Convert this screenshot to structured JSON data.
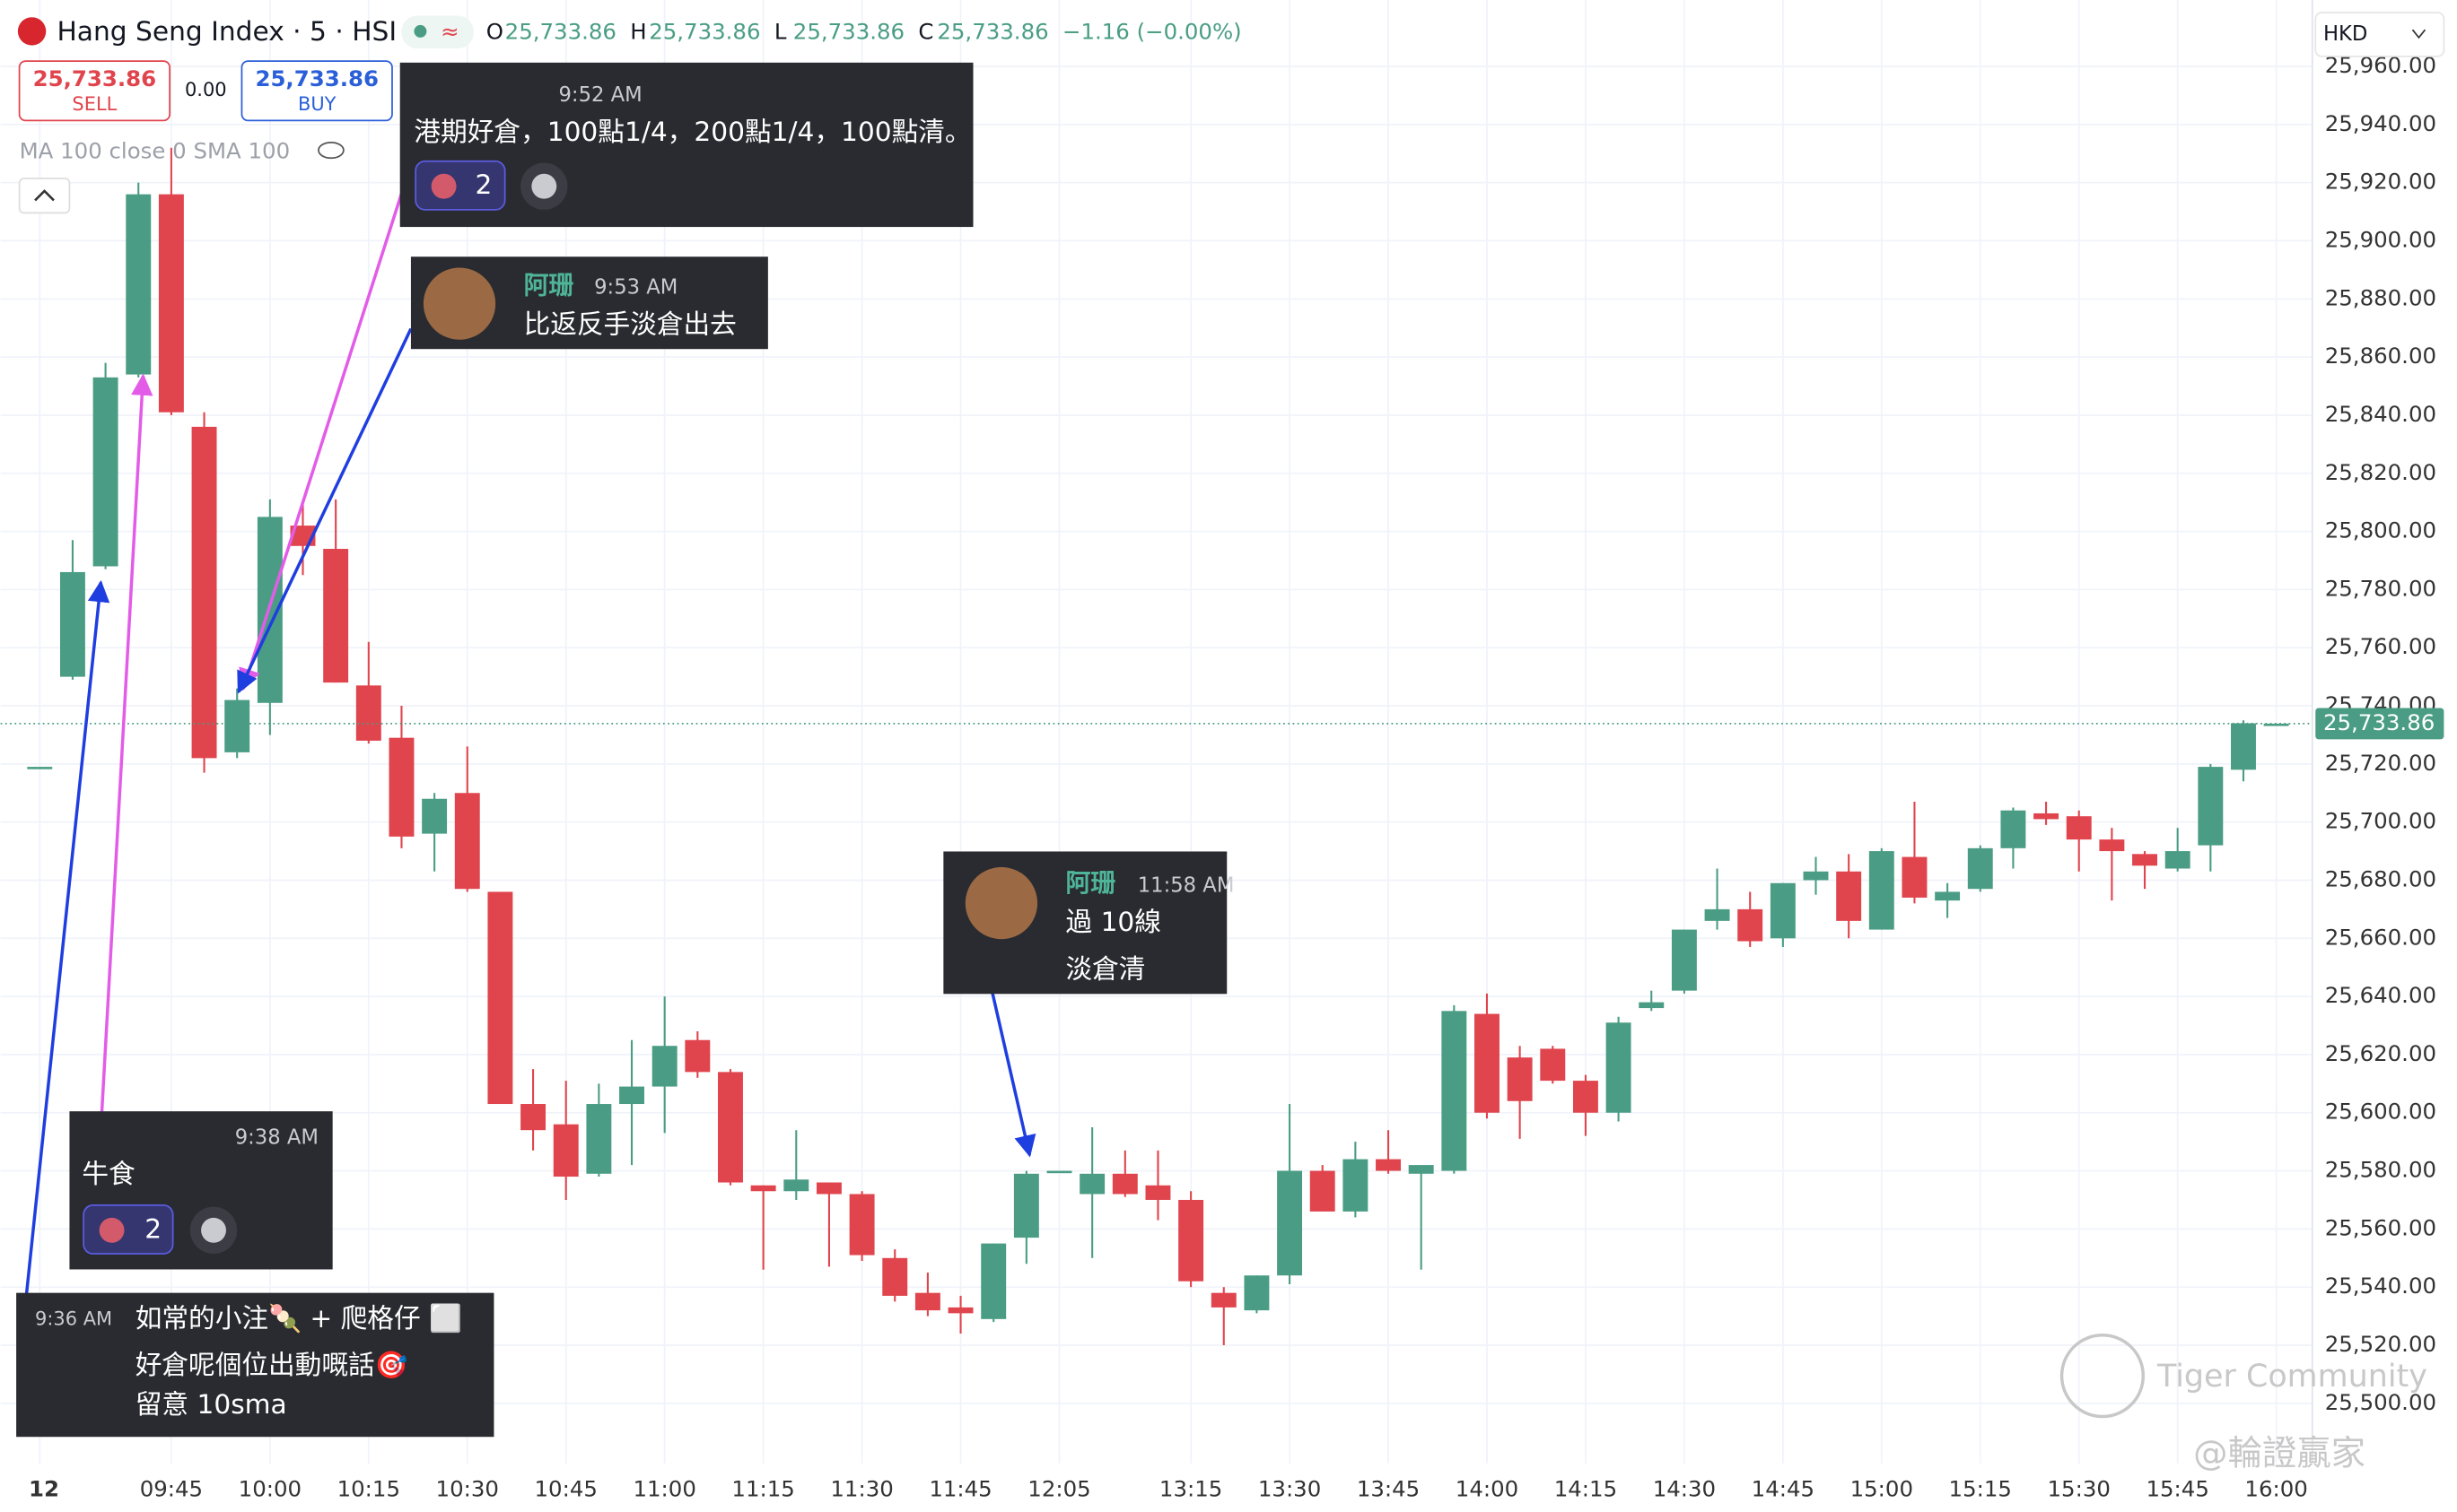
{
  "chart_data": {
    "type": "candlestick",
    "categories": [
      "12",
      null,
      null,
      null,
      "09:45",
      null,
      null,
      "10:00",
      null,
      null,
      "10:15",
      null,
      null,
      "10:30",
      null,
      null,
      "10:45",
      null,
      null,
      "11:00",
      null,
      null,
      "11:15",
      null,
      null,
      "11:30",
      null,
      null,
      "11:45",
      null,
      null,
      "12:05",
      null,
      null,
      null,
      "13:15",
      null,
      null,
      "13:30",
      null,
      null,
      "13:45",
      null,
      null,
      "14:00",
      null,
      null,
      "14:15",
      null,
      null,
      "14:30",
      null,
      null,
      "14:45",
      null,
      null,
      "15:00",
      null,
      null,
      "15:15",
      null,
      null,
      "15:30",
      null,
      null,
      "15:45",
      null,
      null,
      "16:00"
    ],
    "open": [
      25719,
      25750,
      25788,
      25854,
      25916,
      25836,
      25724,
      25741,
      25802,
      25794,
      25747,
      25729,
      25696,
      25710,
      25676,
      25603,
      25596,
      25579,
      25603,
      25609,
      25625,
      25614,
      25575,
      25573,
      25576,
      25572,
      25550,
      25538,
      25533,
      25529,
      25557,
      25580,
      25572,
      25579,
      25575,
      25570,
      25538,
      25532,
      25544,
      25580,
      25566,
      25584,
      25579,
      25580,
      25634,
      25619,
      25622,
      25611,
      25600,
      25636,
      25642,
      25666,
      25670,
      25660,
      25680,
      25683,
      25663,
      25688,
      25673,
      25677,
      25691,
      25703,
      25702,
      25694,
      25689,
      25684,
      25692,
      25718,
      25733.86
    ],
    "high": [
      25719,
      25797,
      25858,
      25920,
      25932,
      25841,
      25746,
      25811,
      25810,
      25811,
      25762,
      25740,
      25710,
      25726,
      25676,
      25615,
      25611,
      25610,
      25625,
      25640,
      25628,
      25615,
      25575,
      25594,
      25576,
      25573,
      25553,
      25545,
      25537,
      25555,
      25580,
      25580,
      25595,
      25587,
      25587,
      25573,
      25540,
      25544,
      25603,
      25582,
      25590,
      25594,
      25582,
      25637,
      25641,
      25623,
      25623,
      25613,
      25633,
      25642,
      25663,
      25684,
      25676,
      25679,
      25688,
      25689,
      25691,
      25707,
      25679,
      25692,
      25705,
      25707,
      25704,
      25698,
      25690,
      25698,
      25720,
      25735,
      25733.86
    ],
    "low": [
      25719,
      25749,
      25787,
      25853,
      25840,
      25717,
      25722,
      25730,
      25785,
      25748,
      25727,
      25691,
      25683,
      25676,
      25603,
      25587,
      25570,
      25578,
      25582,
      25593,
      25612,
      25575,
      25546,
      25570,
      25547,
      25549,
      25535,
      25530,
      25524,
      25528,
      25548,
      25580,
      25550,
      25571,
      25563,
      25540,
      25520,
      25531,
      25541,
      25566,
      25564,
      25579,
      25546,
      25579,
      25598,
      25591,
      25610,
      25592,
      25597,
      25635,
      25641,
      25663,
      25657,
      25657,
      25675,
      25660,
      25663,
      25672,
      25667,
      25676,
      25684,
      25699,
      25683,
      25673,
      25677,
      25683,
      25683,
      25714,
      25733.86
    ],
    "close": [
      25719,
      25786,
      25853,
      25916,
      25841,
      25722,
      25742,
      25805,
      25795,
      25748,
      25728,
      25695,
      25708,
      25677,
      25603,
      25594,
      25578,
      25603,
      25609,
      25623,
      25614,
      25576,
      25573,
      25577,
      25572,
      25551,
      25537,
      25532,
      25531,
      25555,
      25579,
      25580,
      25579,
      25572,
      25570,
      25542,
      25533,
      25544,
      25580,
      25566,
      25584,
      25580,
      25582,
      25635,
      25600,
      25604,
      25611,
      25600,
      25631,
      25638,
      25663,
      25670,
      25659,
      25679,
      25683,
      25666,
      25690,
      25674,
      25676,
      25691,
      25704,
      25701,
      25694,
      25690,
      25685,
      25690,
      25719,
      25734,
      25733.86
    ],
    "up_color": "#4a9d84",
    "down_color": "#e0444d",
    "ylim": [
      25482,
      25964
    ],
    "yticks": [
      {
        "value": 25500,
        "label": "25,500.00"
      },
      {
        "value": 25520,
        "label": "25,520.00"
      },
      {
        "value": 25540,
        "label": "25,540.00"
      },
      {
        "value": 25560,
        "label": "25,560.00"
      },
      {
        "value": 25580,
        "label": "25,580.00"
      },
      {
        "value": 25600,
        "label": "25,600.00"
      },
      {
        "value": 25620,
        "label": "25,620.00"
      },
      {
        "value": 25640,
        "label": "25,640.00"
      },
      {
        "value": 25660,
        "label": "25,660.00"
      },
      {
        "value": 25680,
        "label": "25,680.00"
      },
      {
        "value": 25700,
        "label": "25,700.00"
      },
      {
        "value": 25720,
        "label": "25,720.00"
      },
      {
        "value": 25740,
        "label": "25,740.00"
      },
      {
        "value": 25760,
        "label": "25,760.00"
      },
      {
        "value": 25780,
        "label": "25,780.00"
      },
      {
        "value": 25800,
        "label": "25,800.00"
      },
      {
        "value": 25820,
        "label": "25,820.00"
      },
      {
        "value": 25840,
        "label": "25,840.00"
      },
      {
        "value": 25860,
        "label": "25,860.00"
      },
      {
        "value": 25880,
        "label": "25,880.00"
      },
      {
        "value": 25900,
        "label": "25,900.00"
      },
      {
        "value": 25920,
        "label": "25,920.00"
      },
      {
        "value": 25940,
        "label": "25,940.00"
      },
      {
        "value": 25960,
        "label": "25,960.00"
      }
    ],
    "grid": true,
    "last_price": {
      "value": 25733.86,
      "label": "25,733.86"
    }
  },
  "ui": {
    "header": {
      "title": "Hang Seng Index · 5 · HSI",
      "ohlc": [
        {
          "key": "O",
          "value": "25,733.86"
        },
        {
          "key": "H",
          "value": "25,733.86"
        },
        {
          "key": "L",
          "value": "25,733.86"
        },
        {
          "key": "C",
          "value": "25,733.86"
        }
      ],
      "change": "−1.16 (−0.00%)"
    },
    "trade": {
      "sell_price": "25,733.86",
      "sell": "SELL",
      "spread": "0.00",
      "buy_price": "25,733.86",
      "buy": "BUY"
    },
    "indicator": "MA 100 close 0 SMA 100",
    "currency": "HKD",
    "comments": [
      {
        "time": "9:36 AM",
        "lines": [
          "如常的小注🍡 + 爬格仔 ⬜",
          "好倉呢個位出動嘅話🎯",
          "留意  10sma"
        ]
      },
      {
        "time": "9:38 AM",
        "lines": [
          "牛食"
        ],
        "reactions": 2
      },
      {
        "time": "9:52 AM",
        "lines": [
          "港期好倉，100點1/4，200點1/4，100點清。"
        ],
        "reactions": 2
      },
      {
        "author": "阿珊",
        "time": "9:53 AM",
        "lines": [
          "比返反手淡倉出去"
        ]
      },
      {
        "author": "阿珊",
        "time": "11:58 AM",
        "lines": [
          "過 10線",
          "淡倉清"
        ]
      }
    ],
    "watermark": [
      "Tiger Community",
      "@輪證贏家"
    ]
  }
}
